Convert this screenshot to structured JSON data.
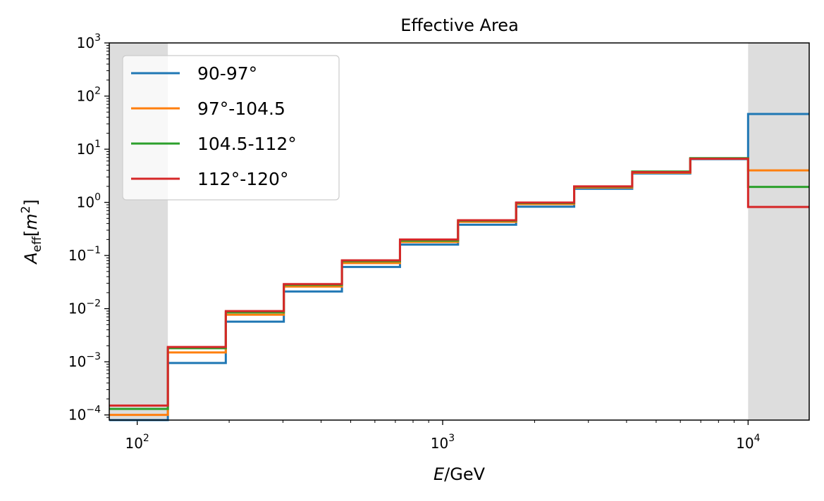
{
  "chart_data": {
    "type": "line",
    "step": "post",
    "title": "Effective Area",
    "xlabel": "E/GeV",
    "ylabel": "A_eff[m^2]",
    "xscale": "log",
    "yscale": "log",
    "xlim": [
      81,
      15850
    ],
    "ylim": [
      8e-05,
      1000
    ],
    "x_ticks": [
      {
        "value": 100,
        "base": "10",
        "exp": "2"
      },
      {
        "value": 1000,
        "base": "10",
        "exp": "3"
      },
      {
        "value": 10000,
        "base": "10",
        "exp": "4"
      }
    ],
    "y_ticks": [
      {
        "value": 0.0001,
        "base": "10",
        "exp": "−4"
      },
      {
        "value": 0.001,
        "base": "10",
        "exp": "−3"
      },
      {
        "value": 0.01,
        "base": "10",
        "exp": "−2"
      },
      {
        "value": 0.1,
        "base": "10",
        "exp": "−1"
      },
      {
        "value": 1,
        "base": "10",
        "exp": "0"
      },
      {
        "value": 10,
        "base": "10",
        "exp": "1"
      },
      {
        "value": 100,
        "base": "10",
        "exp": "2"
      },
      {
        "value": 1000,
        "base": "10",
        "exp": "3"
      }
    ],
    "shaded_regions": [
      [
        81,
        126
      ],
      [
        10000,
        15850
      ]
    ],
    "bin_edges": [
      81,
      126,
      195,
      302,
      468,
      725,
      1123,
      1740,
      2695,
      4175,
      6467,
      10000,
      15850
    ],
    "series": [
      {
        "name": "90-97°",
        "color": "#1f77b4",
        "values": [
          7e-05,
          0.00095,
          0.0057,
          0.021,
          0.061,
          0.16,
          0.38,
          0.83,
          1.8,
          3.5,
          6.5,
          46
        ]
      },
      {
        "name": "97°-104.5",
        "color": "#ff7f0e",
        "values": [
          0.0001,
          0.0015,
          0.0077,
          0.026,
          0.072,
          0.18,
          0.43,
          0.93,
          1.9,
          3.6,
          6.7,
          4.0
        ]
      },
      {
        "name": "104.5-112°",
        "color": "#2ca02c",
        "values": [
          0.00013,
          0.0018,
          0.0085,
          0.028,
          0.078,
          0.19,
          0.45,
          0.97,
          1.97,
          3.8,
          6.8,
          1.95
        ]
      },
      {
        "name": "112°-120°",
        "color": "#d62728",
        "values": [
          0.00015,
          0.0019,
          0.009,
          0.029,
          0.081,
          0.2,
          0.46,
          0.99,
          2.0,
          3.7,
          6.6,
          0.82
        ]
      }
    ],
    "legend_position": "upper-left",
    "grid": false
  }
}
